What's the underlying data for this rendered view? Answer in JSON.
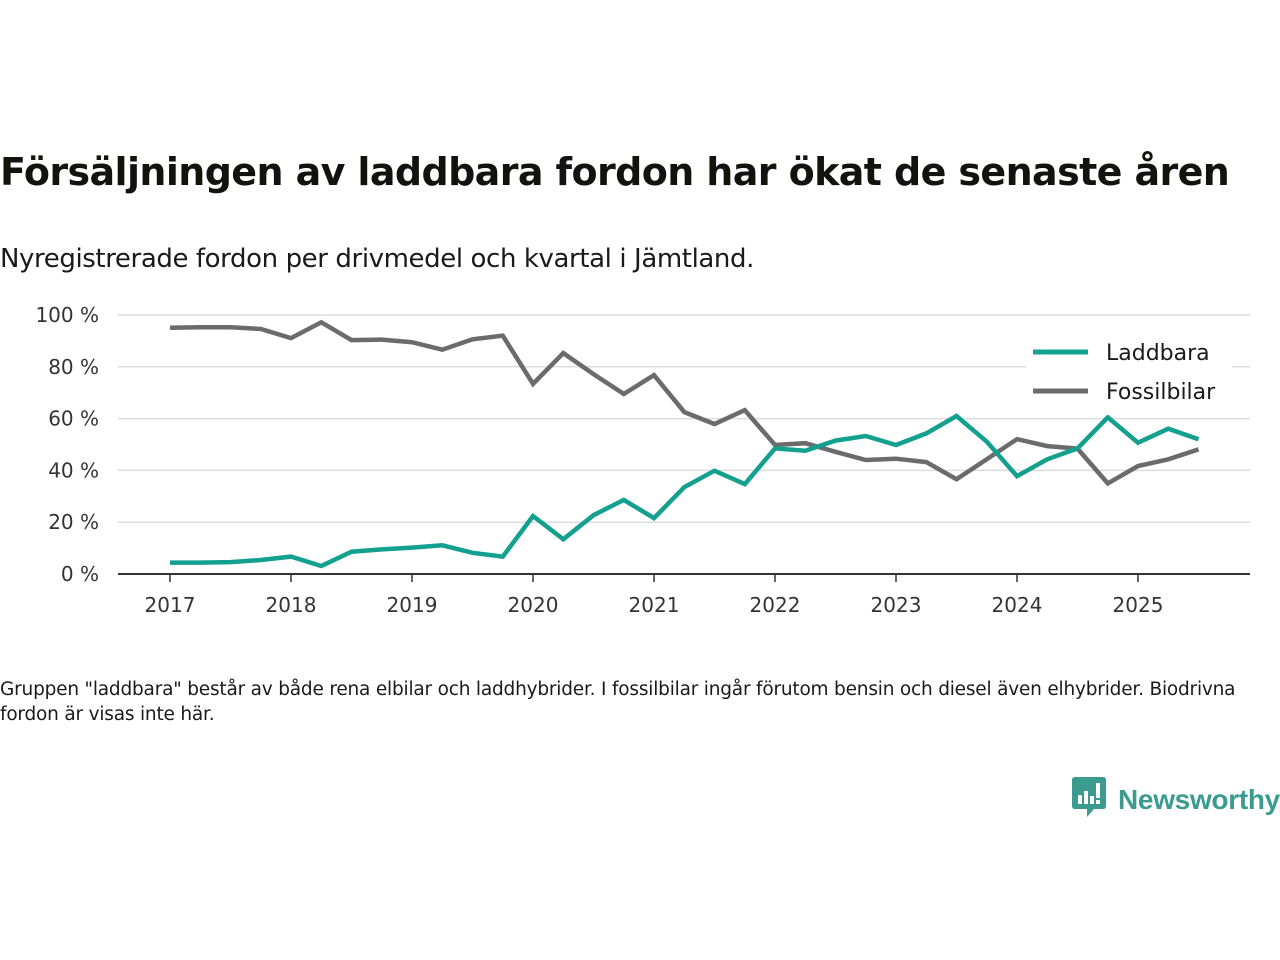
{
  "header": {
    "title": "Försäljningen av laddbara fordon har ökat de senaste åren",
    "subtitle": "Nyregistrerade fordon per drivmedel och kvartal i Jämtland."
  },
  "footer": {
    "note": "Gruppen \"laddbara\" består av både rena elbilar och laddhybrider. I fossilbilar ingår förutom bensin och diesel även elhybrider. Biodrivna fordon är visas inte här.",
    "brand": "Newsworthy",
    "brand_color": "#3a9b8e"
  },
  "chart_data": {
    "type": "line",
    "title": "Försäljningen av laddbara fordon har ökat de senaste åren",
    "subtitle": "Nyregistrerade fordon per drivmedel och kvartal i Jämtland.",
    "xlabel": "",
    "ylabel": "",
    "x": [
      "2017Q1",
      "2017Q2",
      "2017Q3",
      "2017Q4",
      "2018Q1",
      "2018Q2",
      "2018Q3",
      "2018Q4",
      "2019Q1",
      "2019Q2",
      "2019Q3",
      "2019Q4",
      "2020Q1",
      "2020Q2",
      "2020Q3",
      "2020Q4",
      "2021Q1",
      "2021Q2",
      "2021Q3",
      "2021Q4",
      "2022Q1",
      "2022Q2",
      "2022Q3",
      "2022Q4",
      "2023Q1",
      "2023Q2",
      "2023Q3",
      "2023Q4",
      "2024Q1",
      "2024Q2",
      "2024Q3",
      "2024Q4",
      "2025Q1",
      "2025Q2",
      "2025Q3"
    ],
    "x_ticks": [
      "2017",
      "2018",
      "2019",
      "2020",
      "2021",
      "2022",
      "2023",
      "2024",
      "2025"
    ],
    "y_ticks": [
      "0 %",
      "20 %",
      "40 %",
      "60 %",
      "80 %",
      "100 %"
    ],
    "ylim": [
      0,
      100
    ],
    "grid": true,
    "legend_position": "top-right",
    "series": [
      {
        "name": "Laddbara",
        "color": "#13a08f",
        "values": [
          4.4,
          4.4,
          4.6,
          5.4,
          6.7,
          3.1,
          8.6,
          9.5,
          10.2,
          11.1,
          8.2,
          6.7,
          22.4,
          13.4,
          22.7,
          28.6,
          21.6,
          33.5,
          39.9,
          34.7,
          48.5,
          47.6,
          51.5,
          53.3,
          49.8,
          54.3,
          61.0,
          51.1,
          37.8,
          44.3,
          48.5,
          60.5,
          50.7,
          56.1,
          52.0
        ]
      },
      {
        "name": "Fossilbilar",
        "color": "#6b6b6d",
        "values": [
          95.1,
          95.3,
          95.3,
          94.6,
          91.1,
          97.2,
          90.3,
          90.5,
          89.5,
          86.6,
          90.6,
          92.0,
          73.4,
          85.3,
          77.2,
          69.5,
          76.8,
          62.5,
          57.9,
          63.3,
          49.8,
          50.5,
          47.2,
          44.0,
          44.5,
          43.2,
          36.6,
          44.3,
          52.1,
          49.4,
          48.4,
          35.0,
          41.7,
          44.3,
          48.1
        ]
      }
    ]
  }
}
